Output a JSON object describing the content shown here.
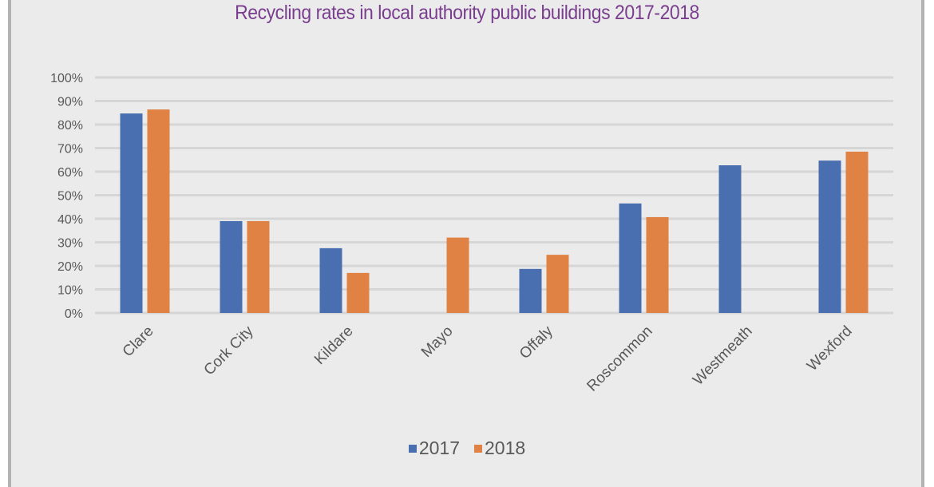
{
  "chart_data": {
    "type": "bar",
    "title": "Recycling rates in local authority public buildings 2017-2018",
    "xlabel": "",
    "ylabel": "",
    "categories": [
      "Clare",
      "Cork City",
      "Kildare",
      "Mayo",
      "Offaly",
      "Roscommon",
      "Westmeath",
      "Wexford"
    ],
    "series": [
      {
        "name": "2017",
        "color": "#4a6fb0",
        "values": [
          0.847,
          0.39,
          0.275,
          null,
          0.187,
          0.465,
          0.627,
          0.647
        ]
      },
      {
        "name": "2018",
        "color": "#e08243",
        "values": [
          0.864,
          0.39,
          0.17,
          0.32,
          0.247,
          0.407,
          null,
          0.685
        ]
      }
    ],
    "ylim": [
      0,
      1
    ],
    "yticks": [
      0,
      0.1,
      0.2,
      0.3,
      0.4,
      0.5,
      0.6,
      0.7,
      0.8,
      0.9,
      1.0
    ],
    "ytick_labels": [
      "0%",
      "10%",
      "20%",
      "30%",
      "40%",
      "50%",
      "60%",
      "70%",
      "80%",
      "90%",
      "100%"
    ],
    "grid": true,
    "legend_position": "bottom"
  },
  "colors": {
    "background": "#ebebeb",
    "gridline": "#d6d6d6",
    "title": "#7a3e8e",
    "text": "#595959"
  }
}
